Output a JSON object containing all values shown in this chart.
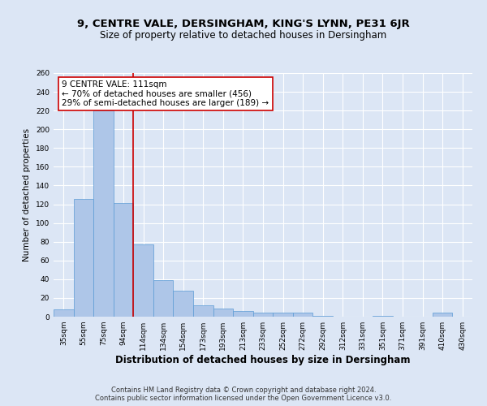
{
  "title1": "9, CENTRE VALE, DERSINGHAM, KING'S LYNN, PE31 6JR",
  "title2": "Size of property relative to detached houses in Dersingham",
  "xlabel": "Distribution of detached houses by size in Dersingham",
  "ylabel": "Number of detached properties",
  "categories": [
    "35sqm",
    "55sqm",
    "75sqm",
    "94sqm",
    "114sqm",
    "134sqm",
    "154sqm",
    "173sqm",
    "193sqm",
    "213sqm",
    "233sqm",
    "252sqm",
    "272sqm",
    "292sqm",
    "312sqm",
    "331sqm",
    "351sqm",
    "371sqm",
    "391sqm",
    "410sqm",
    "430sqm"
  ],
  "values": [
    8,
    126,
    220,
    121,
    77,
    39,
    28,
    12,
    9,
    6,
    4,
    4,
    4,
    1,
    0,
    0,
    1,
    0,
    0,
    4,
    0
  ],
  "bar_color": "#aec6e8",
  "bar_edge_color": "#5b9bd5",
  "bar_width": 1.0,
  "vline_color": "#cc0000",
  "annotation_box_text": "9 CENTRE VALE: 111sqm\n← 70% of detached houses are smaller (456)\n29% of semi-detached houses are larger (189) →",
  "annotation_box_edge_color": "#cc0000",
  "ylim": [
    0,
    260
  ],
  "yticks": [
    0,
    20,
    40,
    60,
    80,
    100,
    120,
    140,
    160,
    180,
    200,
    220,
    240,
    260
  ],
  "background_color": "#dce6f5",
  "plot_bg_color": "#dce6f5",
  "footer_line1": "Contains HM Land Registry data © Crown copyright and database right 2024.",
  "footer_line2": "Contains public sector information licensed under the Open Government Licence v3.0.",
  "title1_fontsize": 9.5,
  "title2_fontsize": 8.5,
  "xlabel_fontsize": 8.5,
  "ylabel_fontsize": 7.5,
  "tick_fontsize": 6.5,
  "annotation_fontsize": 7.5,
  "footer_fontsize": 6.0
}
